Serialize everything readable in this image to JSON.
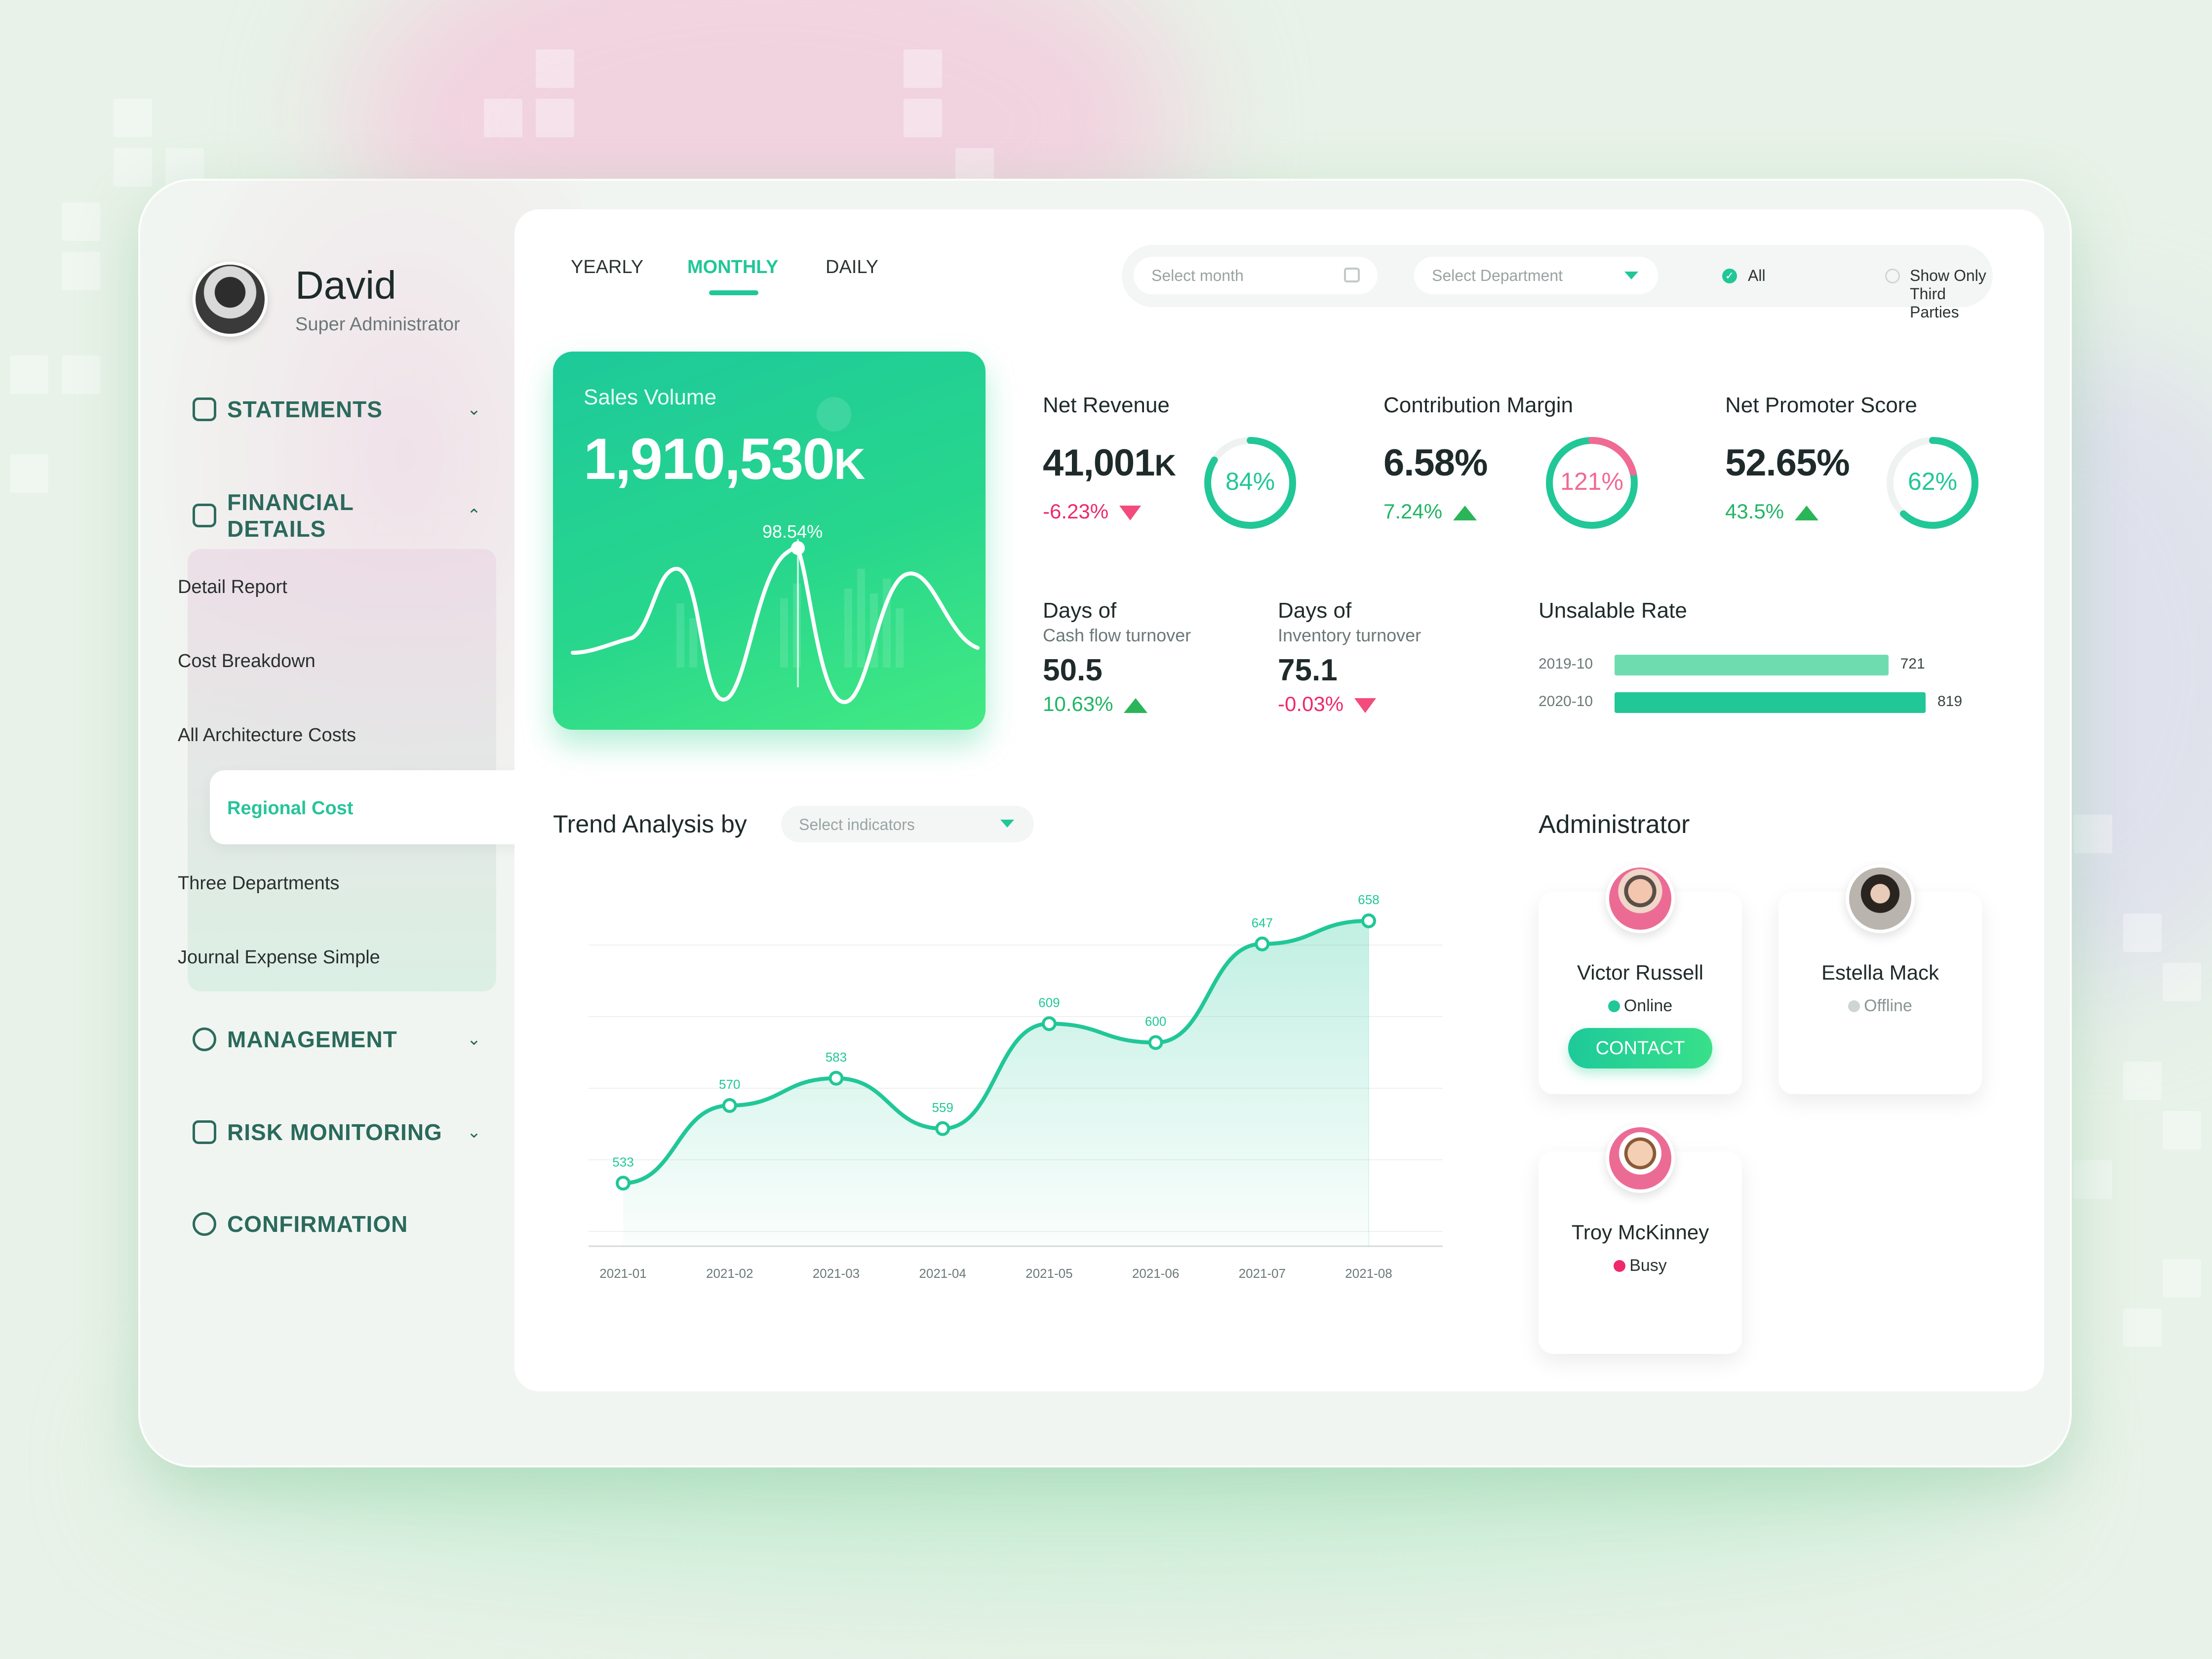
{
  "profile": {
    "name": "David",
    "role": "Super Administrator"
  },
  "sidebar": {
    "statements": "STATEMENTS",
    "financial_details": "FINANCIAL DETAILS",
    "financial_sub": [
      "Detail Report",
      "Cost Breakdown",
      "All Architecture Costs",
      "Regional Cost",
      "Three Departments",
      "Journal Expense Simple"
    ],
    "active_sub": "Regional Cost",
    "management": "MANAGEMENT",
    "risk_monitoring": "RISK MONITORING",
    "confirmation": "CONFIRMATION"
  },
  "tabs": {
    "yearly": "YEARLY",
    "monthly": "MONTHLY",
    "daily": "DAILY",
    "active": "MONTHLY"
  },
  "filters": {
    "month_placeholder": "Select month",
    "department_placeholder": "Select Department",
    "all_label": "All",
    "third_parties_label": "Show Only Third Parties"
  },
  "sales": {
    "title": "Sales Volume",
    "value": "1,910,530",
    "unit": "K",
    "percent": "98.54%"
  },
  "kpis": {
    "net_revenue": {
      "title": "Net Revenue",
      "value": "41,001",
      "unit": "K",
      "change": "-6.23%",
      "ring": "84%",
      "ring_pct": 84
    },
    "contribution_margin": {
      "title": "Contribution Margin",
      "value": "6.58%",
      "change": "7.24%",
      "ring": "121%",
      "ring_pct": 100
    },
    "net_promoter": {
      "title": "Net Promoter Score",
      "value": "52.65%",
      "change": "43.5%",
      "ring": "62%",
      "ring_pct": 62
    }
  },
  "days": {
    "cash": {
      "title": "Days of",
      "subtitle": "Cash flow turnover",
      "value": "50.5",
      "change": "10.63%"
    },
    "inventory": {
      "title": "Days of",
      "subtitle": "Inventory turnover",
      "value": "75.1",
      "change": "-0.03%"
    }
  },
  "unsalable": {
    "title": "Unsalable Rate",
    "rows": [
      {
        "year": "2019-10",
        "value": 721,
        "label": "721"
      },
      {
        "year": "2020-10",
        "value": 819,
        "label": "819"
      }
    ]
  },
  "trend": {
    "title": "Trend Analysis by",
    "indicator_placeholder": "Select indicators"
  },
  "chart_data": {
    "type": "area",
    "categories": [
      "2021-01",
      "2021-02",
      "2021-03",
      "2021-04",
      "2021-05",
      "2021-06",
      "2021-07",
      "2021-08"
    ],
    "values": [
      533,
      570,
      583,
      559,
      609,
      600,
      647,
      658
    ],
    "title": "",
    "xlabel": "",
    "ylabel": "",
    "ylim": [
      510,
      670
    ],
    "grid": true
  },
  "administrator": {
    "title": "Administrator",
    "people": [
      {
        "name": "Victor Russell",
        "status": "Online",
        "status_color": "#21c797",
        "button": "CONTACT"
      },
      {
        "name": "Estella Mack",
        "status": "Offline",
        "status_color": "#cfd4d4"
      },
      {
        "name": "Troy McKinney",
        "status": "Busy",
        "status_color": "#ee2a6a"
      }
    ]
  },
  "colors": {
    "accent": "#21c797",
    "negative": "#ee2a6a",
    "positive": "#22b565"
  }
}
